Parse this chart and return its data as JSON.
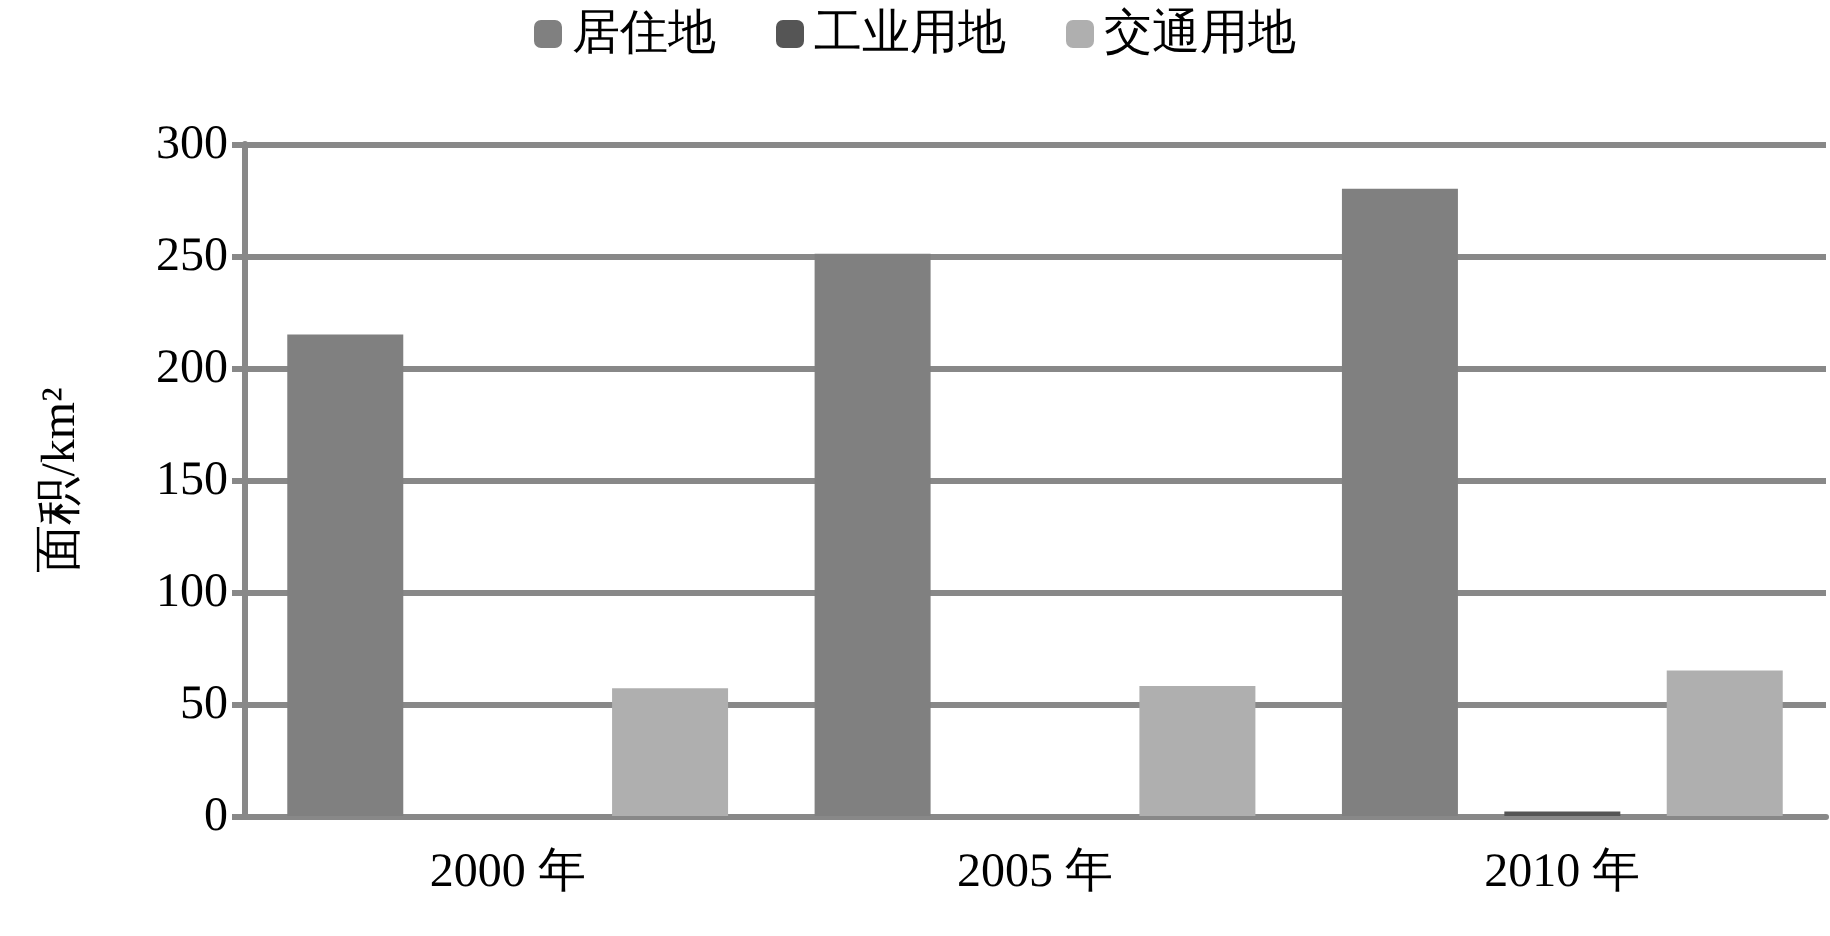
{
  "chart_data": {
    "type": "bar",
    "ylabel": "面积/km²",
    "categories": [
      "2000 年",
      "2005 年",
      "2010 年"
    ],
    "series": [
      {
        "name": "居住地",
        "color": "#808080",
        "values": [
          215,
          251,
          280
        ]
      },
      {
        "name": "工业用地",
        "color": "#555555",
        "values": [
          0,
          0,
          2
        ]
      },
      {
        "name": "交通用地",
        "color": "#afafaf",
        "values": [
          57,
          58,
          65
        ]
      }
    ],
    "ylim": [
      0,
      300
    ],
    "yticks": [
      0,
      50,
      100,
      150,
      200,
      250,
      300
    ],
    "grid": "y",
    "legend": "top"
  }
}
